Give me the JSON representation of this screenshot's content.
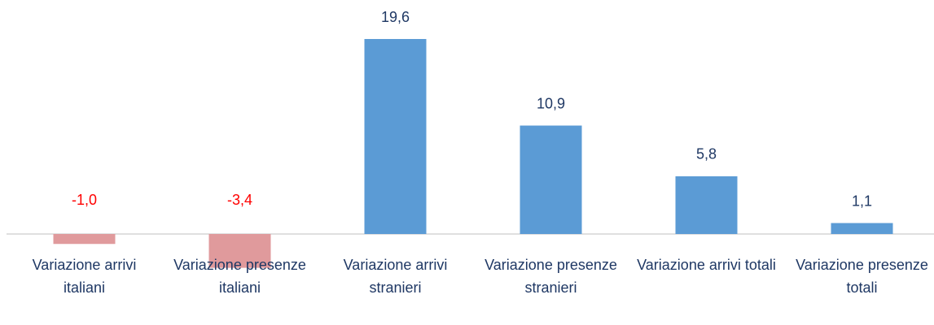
{
  "chart_data": {
    "type": "bar",
    "categories": [
      "Variazione arrivi italiani",
      "Variazione presenze italiani",
      "Variazione arrivi stranieri",
      "Variazione presenze stranieri",
      "Variazione arrivi totali",
      "Variazione presenze totali"
    ],
    "values": [
      -1.0,
      -3.4,
      19.6,
      10.9,
      5.8,
      1.1
    ],
    "value_labels": [
      "-1,0",
      "-3,4",
      "19,6",
      "10,9",
      "5,8",
      "1,1"
    ],
    "colors": [
      "#e09a9c",
      "#e09a9c",
      "#5b9bd5",
      "#5b9bd5",
      "#5b9bd5",
      "#5b9bd5"
    ],
    "label_colors": [
      "#ff0000",
      "#ff0000",
      "#1f3864",
      "#1f3864",
      "#1f3864",
      "#1f3864"
    ]
  }
}
